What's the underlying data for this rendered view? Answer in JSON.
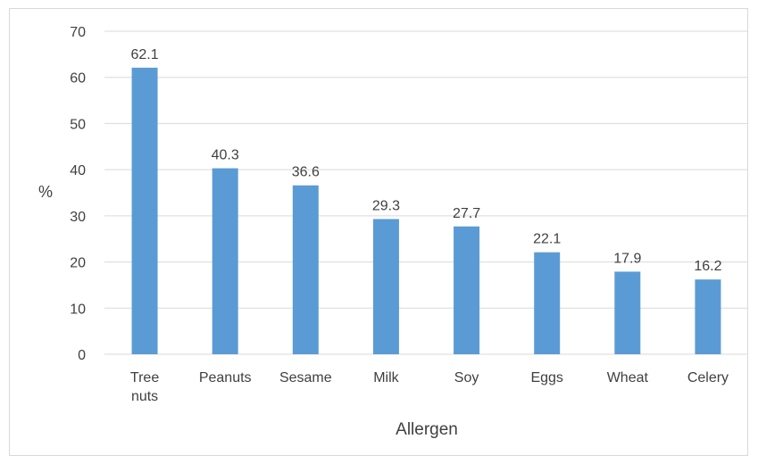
{
  "chart_data": {
    "type": "bar",
    "categories": [
      [
        "Tree",
        "nuts"
      ],
      [
        "Peanuts"
      ],
      [
        "Sesame"
      ],
      [
        "Milk"
      ],
      [
        "Soy"
      ],
      [
        "Eggs"
      ],
      [
        "Wheat"
      ],
      [
        "Celery"
      ]
    ],
    "values": [
      62.1,
      40.3,
      36.6,
      29.3,
      27.7,
      22.1,
      17.9,
      16.2
    ],
    "data_labels": [
      "62.1",
      "40.3",
      "36.6",
      "29.3",
      "27.7",
      "22.1",
      "17.9",
      "16.2"
    ],
    "xlabel": "Allergen",
    "ylabel": "%",
    "ylim": [
      0,
      70
    ],
    "yticks": [
      "0",
      "10",
      "20",
      "30",
      "40",
      "50",
      "60",
      "70"
    ],
    "grid": true,
    "bar_color": "#5b9bd5",
    "grid_color": "#d9d9d9",
    "text_color": "#404040"
  }
}
